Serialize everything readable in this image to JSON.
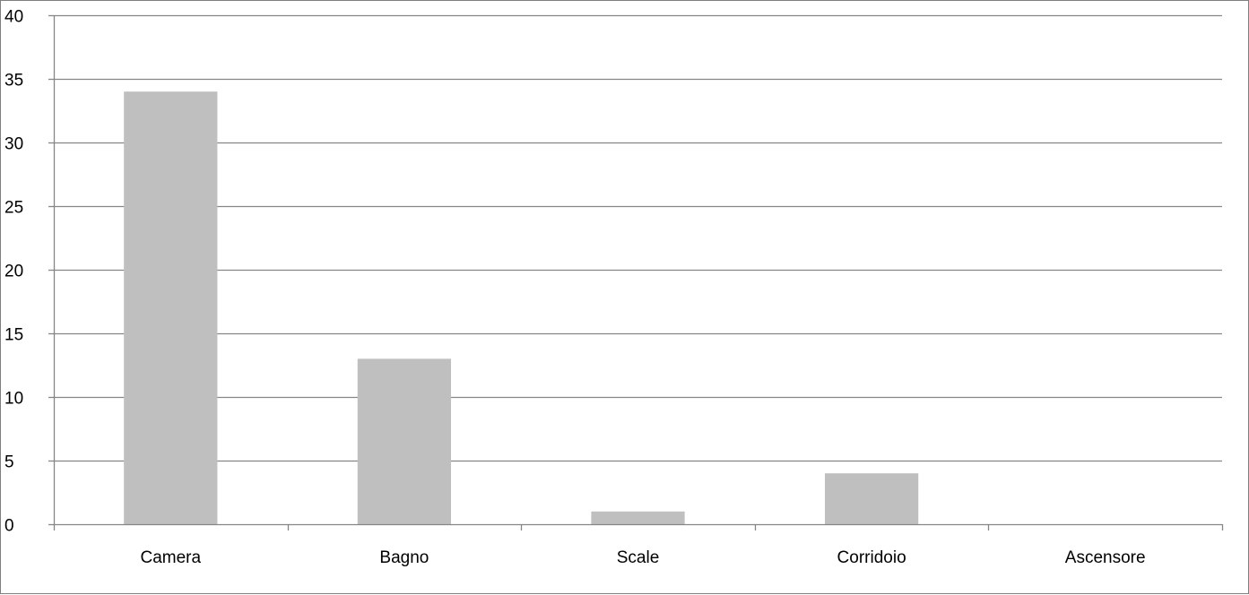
{
  "chart_data": {
    "type": "bar",
    "categories": [
      "Camera",
      "Bagno",
      "Scale",
      "Corridoio",
      "Ascensore"
    ],
    "values": [
      34,
      13,
      1,
      4,
      0
    ],
    "ylim": [
      0,
      40
    ],
    "yticks": [
      0,
      5,
      10,
      15,
      20,
      25,
      30,
      35,
      40
    ],
    "grid": true,
    "legend": "none",
    "colors": {
      "bar": "#bfbfbf",
      "grid": "#868686",
      "axis": "#868686"
    }
  }
}
